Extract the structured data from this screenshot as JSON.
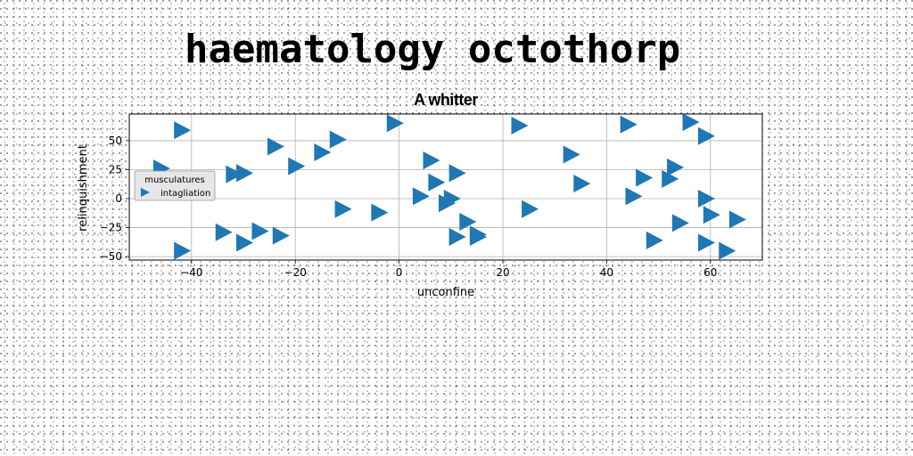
{
  "header": {
    "title": "haematology octothorp"
  },
  "chart_data": {
    "type": "scatter",
    "title": "A whitter",
    "xlabel": "unconfine",
    "ylabel": "relinquishment",
    "xlim": [
      -52,
      70
    ],
    "ylim": [
      -53,
      73
    ],
    "xticks": [
      -40,
      -20,
      0,
      20,
      40,
      60
    ],
    "yticks": [
      -50,
      -25,
      0,
      25,
      50
    ],
    "grid": true,
    "legend": {
      "title": "musculatures",
      "placement": "center-left"
    },
    "series": [
      {
        "name": "intagliation",
        "marker": "triangle-right",
        "color": "#1f77b4",
        "points": [
          [
            -42,
            59
          ],
          [
            -46,
            26
          ],
          [
            -32,
            21
          ],
          [
            -30,
            22
          ],
          [
            -42,
            -45
          ],
          [
            -34,
            -29
          ],
          [
            -30,
            -38
          ],
          [
            -27,
            -28
          ],
          [
            -23,
            -32
          ],
          [
            -24,
            45
          ],
          [
            -20,
            28
          ],
          [
            -15,
            40
          ],
          [
            -12,
            51
          ],
          [
            -11,
            -9
          ],
          [
            -4,
            -12
          ],
          [
            -1,
            65
          ],
          [
            4,
            2
          ],
          [
            6,
            33
          ],
          [
            7,
            14
          ],
          [
            9,
            -4
          ],
          [
            10,
            0
          ],
          [
            11,
            22
          ],
          [
            11,
            -33
          ],
          [
            13,
            -20
          ],
          [
            15,
            -31
          ],
          [
            15,
            -33
          ],
          [
            23,
            63
          ],
          [
            25,
            -9
          ],
          [
            33,
            38
          ],
          [
            35,
            13
          ],
          [
            44,
            64
          ],
          [
            45,
            2
          ],
          [
            47,
            18
          ],
          [
            49,
            -36
          ],
          [
            52,
            17
          ],
          [
            53,
            27
          ],
          [
            54,
            -21
          ],
          [
            56,
            66
          ],
          [
            59,
            54
          ],
          [
            59,
            0
          ],
          [
            60,
            -14
          ],
          [
            59,
            -38
          ],
          [
            63,
            -45
          ],
          [
            65,
            -18
          ]
        ]
      }
    ]
  }
}
